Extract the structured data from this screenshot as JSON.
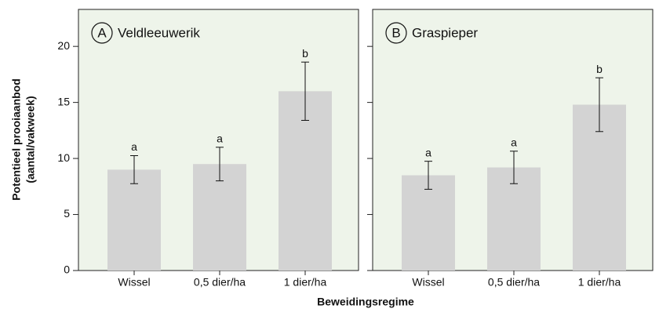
{
  "chart_data": [
    {
      "type": "bar",
      "panel": "A",
      "title": "Veldleeuwerik",
      "categories": [
        "Wissel",
        "0,5 dier/ha",
        "1 dier/ha"
      ],
      "values": [
        9.0,
        9.5,
        16.0
      ],
      "errors": [
        1.25,
        1.5,
        2.6
      ],
      "letters": [
        "a",
        "a",
        "b"
      ],
      "color": "#d3d3d3",
      "background": "#eef4ea",
      "ylim": [
        0,
        23.3
      ],
      "yticks": [
        0,
        5,
        10,
        15,
        20
      ],
      "ylabel": [
        "Potentieel prooiaanbod",
        "(aantal/vakweek)"
      ],
      "xlabel": "Beweidingsregime"
    },
    {
      "type": "bar",
      "panel": "B",
      "title": "Graspieper",
      "categories": [
        "Wissel",
        "0,5 dier/ha",
        "1 dier/ha"
      ],
      "values": [
        8.5,
        9.2,
        14.8
      ],
      "errors": [
        1.25,
        1.45,
        2.4
      ],
      "letters": [
        "a",
        "a",
        "b"
      ],
      "color": "#d3d3d3",
      "background": "#eef4ea",
      "ylim": [
        0,
        23.3
      ],
      "yticks": [
        0,
        5,
        10,
        15,
        20
      ]
    }
  ]
}
